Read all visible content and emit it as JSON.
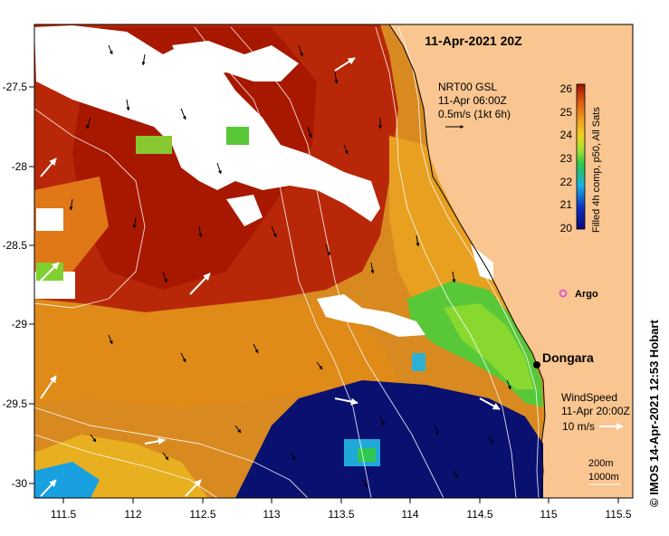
{
  "title": "11-Apr-2021 20Z",
  "current_legend": {
    "lines": [
      "NRT00 GSL",
      "11-Apr 06:00Z",
      "0.5m/s (1kt 6h)"
    ]
  },
  "colorbar": {
    "label": "Filled 4h comp, p50, All Sats",
    "ticks": [
      "26",
      "25",
      "24",
      "23",
      "22",
      "21",
      "20"
    ],
    "min": 20,
    "max": 26
  },
  "argo": {
    "label": "Argo",
    "color": "#e040e0"
  },
  "town": {
    "label": "Dongara"
  },
  "wind_legend": {
    "lines": [
      "WindSpeed",
      "11-Apr 20:00Z",
      "10 m/s"
    ]
  },
  "bathymetry_legend": [
    "200m",
    "1000m"
  ],
  "copyright": "© IMOS 14-Apr-2021 12:53 Hobart",
  "axes": {
    "x_ticks": [
      "111.5",
      "112",
      "112.5",
      "113",
      "113.5",
      "114",
      "114.5",
      "115",
      "115.5"
    ],
    "y_ticks": [
      "-27.5",
      "-28",
      "-28.5",
      "-29",
      "-29.5",
      "-30"
    ],
    "lon_range": [
      111.3,
      115.6
    ],
    "lat_range": [
      -27.2,
      -30.1
    ]
  },
  "colors": {
    "land": "#f9c590",
    "cloud": "#ffffff"
  }
}
